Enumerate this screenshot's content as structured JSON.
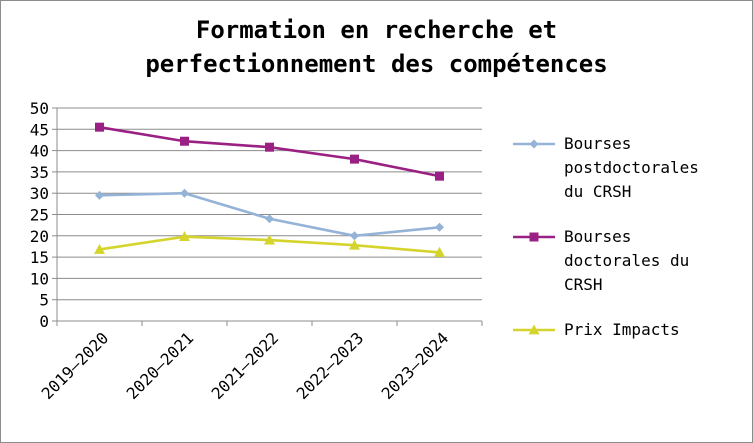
{
  "chart_data": {
    "type": "line",
    "title_lines": [
      "Formation en recherche et",
      "perfectionnement des compétences"
    ],
    "categories": [
      "2019–2020",
      "2020–2021",
      "2021–2022",
      "2022–2023",
      "2023–2024"
    ],
    "series": [
      {
        "name": "Bourses postdoctorales du CRSH",
        "name_lines": [
          "Bourses",
          "postdoctorales",
          "du CRSH"
        ],
        "values": [
          29.5,
          30,
          24,
          20,
          22
        ],
        "color": "#95b3d7",
        "marker": "diamond"
      },
      {
        "name": "Bourses doctorales du CRSH",
        "name_lines": [
          "Bourses",
          "doctorales du",
          "CRSH"
        ],
        "values": [
          45.5,
          42.2,
          40.8,
          38,
          34
        ],
        "color": "#9b2083",
        "marker": "square"
      },
      {
        "name": "Prix Impacts",
        "name_lines": [
          "Prix Impacts"
        ],
        "values": [
          16.8,
          19.8,
          19,
          17.8,
          16.1
        ],
        "color": "#d4d42c",
        "marker": "triangle"
      }
    ],
    "ylim": [
      0,
      50
    ],
    "yticks": [
      0,
      5,
      10,
      15,
      20,
      25,
      30,
      35,
      40,
      45,
      50
    ],
    "grid": true,
    "legend_position": "right"
  }
}
